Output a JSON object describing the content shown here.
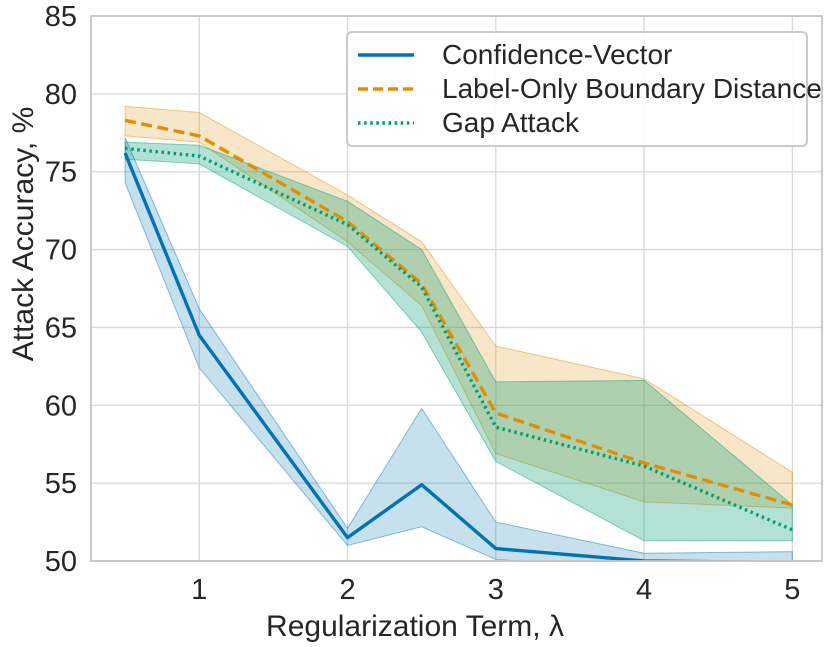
{
  "chart_data": {
    "type": "line",
    "title": "",
    "xlabel": "Regularization Term, λ",
    "ylabel": "Attack Accuracy, %",
    "xlim": [
      0.27,
      5.2
    ],
    "ylim": [
      50,
      85
    ],
    "xticks": [
      1,
      2,
      3,
      4,
      5
    ],
    "yticks": [
      50,
      55,
      60,
      65,
      70,
      75,
      80,
      85
    ],
    "grid": true,
    "legend_position": "upper right",
    "x": [
      0.5,
      1,
      2,
      2.5,
      3,
      4,
      5
    ],
    "series": [
      {
        "name": "Confidence-Vector",
        "color": "#0173B2",
        "line_style": "solid",
        "band_alpha": 0.22,
        "values": [
          76.2,
          64.5,
          51.5,
          54.9,
          50.8,
          50.0,
          49.9
        ],
        "band_low": [
          74.3,
          62.4,
          51.0,
          52.2,
          50.1,
          49.5,
          49.4
        ],
        "band_high": [
          77.2,
          66.2,
          52.1,
          59.8,
          52.5,
          50.5,
          50.6
        ]
      },
      {
        "name": "Label-Only Boundary Distance",
        "color": "#DE8F05",
        "line_style": "dashed",
        "band_alpha": 0.22,
        "values": [
          78.3,
          77.3,
          71.8,
          67.8,
          59.5,
          56.3,
          53.6
        ],
        "band_low": [
          77.3,
          76.9,
          70.5,
          66.4,
          56.9,
          53.8,
          53.4
        ],
        "band_high": [
          79.2,
          78.8,
          73.5,
          70.5,
          63.8,
          61.7,
          55.7
        ]
      },
      {
        "name": "Gap Attack",
        "color": "#029E73",
        "line_style": "dotted",
        "band_alpha": 0.3,
        "values": [
          76.5,
          76.0,
          71.6,
          67.6,
          58.6,
          56.1,
          52.0
        ],
        "band_low": [
          75.8,
          75.5,
          70.2,
          64.7,
          56.4,
          51.3,
          51.3
        ],
        "band_high": [
          76.9,
          76.7,
          73.1,
          70.0,
          61.5,
          61.6,
          53.6
        ]
      }
    ],
    "colors": {
      "background": "#ffffff",
      "grid": "#d8d8d8",
      "spine": "#c4c4c4",
      "text": "#262626"
    }
  }
}
